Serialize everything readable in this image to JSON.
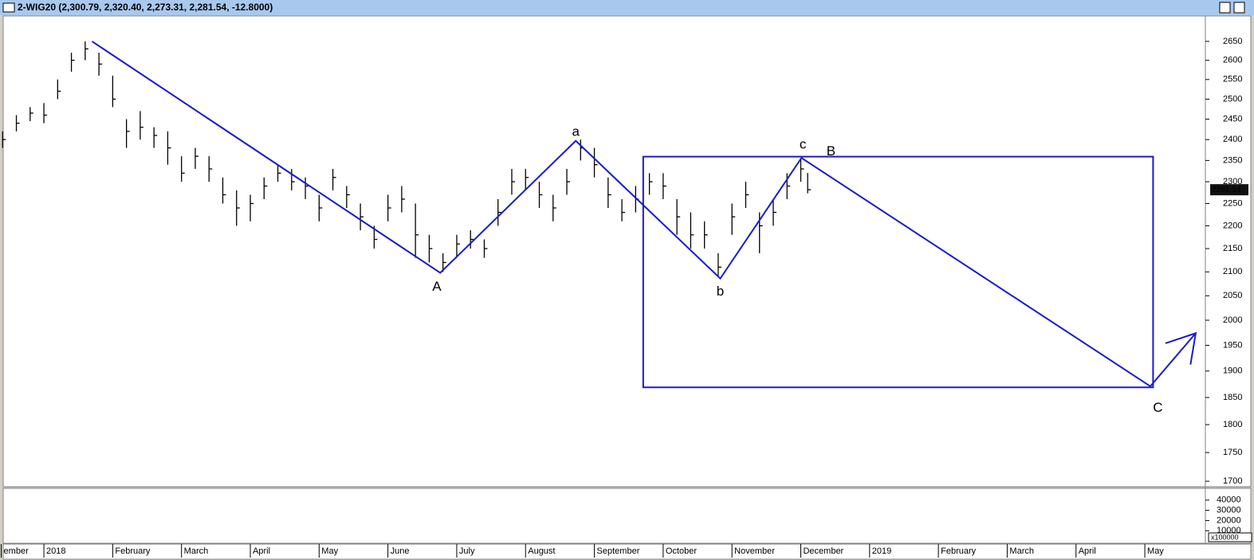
{
  "chart_data": {
    "type": "ohlc",
    "title": "2-WIG20 (2,300.79, 2,320.40, 2,273.31, 2,281.54, -12.8000)",
    "log_scale": true,
    "color": "#000000",
    "x": [
      -0.6,
      -0.4,
      -0.2,
      0,
      0.2,
      0.4,
      0.6,
      0.8,
      1.0,
      1.2,
      1.4,
      1.6,
      1.8,
      2.0,
      2.2,
      2.4,
      2.6,
      2.8,
      3.0,
      3.2,
      3.4,
      3.6,
      3.8,
      4.0,
      4.2,
      4.4,
      4.6,
      4.8,
      5.0,
      5.2,
      5.4,
      5.6,
      5.8,
      6.0,
      6.2,
      6.4,
      6.6,
      6.8,
      7.0,
      7.2,
      7.4,
      7.6,
      7.8,
      8.0,
      8.2,
      8.4,
      8.6,
      8.8,
      9.0,
      9.2,
      9.4,
      9.6,
      9.8,
      10.0,
      10.2,
      10.4,
      10.6,
      10.8,
      11.0,
      11.1
    ],
    "high": [
      2420,
      2460,
      2480,
      2490,
      2550,
      2620,
      2650,
      2620,
      2560,
      2450,
      2470,
      2430,
      2420,
      2360,
      2380,
      2360,
      2310,
      2280,
      2270,
      2310,
      2340,
      2330,
      2310,
      2270,
      2330,
      2290,
      2250,
      2200,
      2270,
      2290,
      2250,
      2180,
      2140,
      2180,
      2190,
      2170,
      2260,
      2330,
      2330,
      2300,
      2270,
      2330,
      2400,
      2380,
      2310,
      2260,
      2290,
      2320,
      2320,
      2260,
      2230,
      2210,
      2140,
      2250,
      2300,
      2230,
      2260,
      2320,
      2355,
      2320.4
    ],
    "low": [
      2380,
      2420,
      2445,
      2440,
      2500,
      2570,
      2600,
      2560,
      2480,
      2380,
      2400,
      2380,
      2340,
      2300,
      2330,
      2300,
      2250,
      2200,
      2210,
      2260,
      2300,
      2280,
      2260,
      2210,
      2280,
      2240,
      2190,
      2150,
      2210,
      2230,
      2130,
      2120,
      2100,
      2130,
      2150,
      2130,
      2200,
      2270,
      2280,
      2240,
      2210,
      2270,
      2350,
      2310,
      2240,
      2210,
      2230,
      2270,
      2260,
      2180,
      2150,
      2150,
      2090,
      2180,
      2240,
      2140,
      2200,
      2260,
      2300,
      2273.31
    ],
    "close": [
      2400,
      2440,
      2465,
      2460,
      2520,
      2600,
      2630,
      2590,
      2500,
      2420,
      2430,
      2410,
      2380,
      2320,
      2360,
      2330,
      2270,
      2240,
      2250,
      2290,
      2320,
      2300,
      2290,
      2240,
      2310,
      2270,
      2220,
      2170,
      2240,
      2260,
      2180,
      2150,
      2120,
      2160,
      2170,
      2150,
      2230,
      2300,
      2310,
      2270,
      2240,
      2300,
      2380,
      2340,
      2270,
      2230,
      2260,
      2300,
      2290,
      2220,
      2180,
      2180,
      2110,
      2220,
      2270,
      2200,
      2230,
      2290,
      2330,
      2281.54
    ],
    "last_price": 2281.54,
    "xlim": [
      -0.58,
      16.88
    ],
    "xticks": [
      {
        "value": -0.62,
        "label": "ember"
      },
      {
        "value": 0,
        "label": "2018"
      },
      {
        "value": 1,
        "label": "February"
      },
      {
        "value": 2,
        "label": "March"
      },
      {
        "value": 3,
        "label": "April"
      },
      {
        "value": 4,
        "label": "May"
      },
      {
        "value": 5,
        "label": "June"
      },
      {
        "value": 6,
        "label": "July"
      },
      {
        "value": 7,
        "label": "August"
      },
      {
        "value": 8,
        "label": "September"
      },
      {
        "value": 9,
        "label": "October"
      },
      {
        "value": 10,
        "label": "November"
      },
      {
        "value": 11,
        "label": "December"
      },
      {
        "value": 12,
        "label": "2019"
      },
      {
        "value": 13,
        "label": "February"
      },
      {
        "value": 14,
        "label": "March"
      },
      {
        "value": 15,
        "label": "April"
      },
      {
        "value": 16,
        "label": "May"
      }
    ],
    "ylim": [
      1692,
      2719
    ],
    "yticks": [
      2650,
      2600,
      2550,
      2500,
      2450,
      2400,
      2350,
      2300,
      2250,
      2200,
      2150,
      2100,
      2050,
      2000,
      1950,
      1900,
      1850,
      1800,
      1750,
      1700
    ],
    "waves": {
      "color": "#1a1acc",
      "x": [
        0.7,
        5.76,
        7.73,
        9.83,
        11.01,
        16.08,
        16.74
      ],
      "y": [
        2650,
        2098,
        2397,
        2086,
        2356,
        1871,
        1974
      ]
    },
    "box": {
      "color": "#1a1acc",
      "x": [
        8.71,
        16.12
      ],
      "y": [
        1869,
        2359
      ]
    },
    "annotations": [
      {
        "text": "A",
        "x": 5.71,
        "y": 2068,
        "color": "#1a1acc"
      },
      {
        "text": "a",
        "x": 7.73,
        "y": 2418,
        "color": "#dd1111"
      },
      {
        "text": "b",
        "x": 9.83,
        "y": 2058,
        "color": "#dd1111"
      },
      {
        "text": "c",
        "x": 11.03,
        "y": 2387,
        "color": "#dd1111"
      },
      {
        "text": "B",
        "x": 11.44,
        "y": 2371,
        "color": "#1a1acc"
      },
      {
        "text": "C",
        "x": 16.19,
        "y": 1830,
        "color": "#1a1acc"
      }
    ],
    "volume": {
      "ylim": [
        5500,
        50800
      ],
      "yticks": [
        40000,
        30000,
        20000,
        10000
      ],
      "multiplier": "x100000"
    }
  }
}
